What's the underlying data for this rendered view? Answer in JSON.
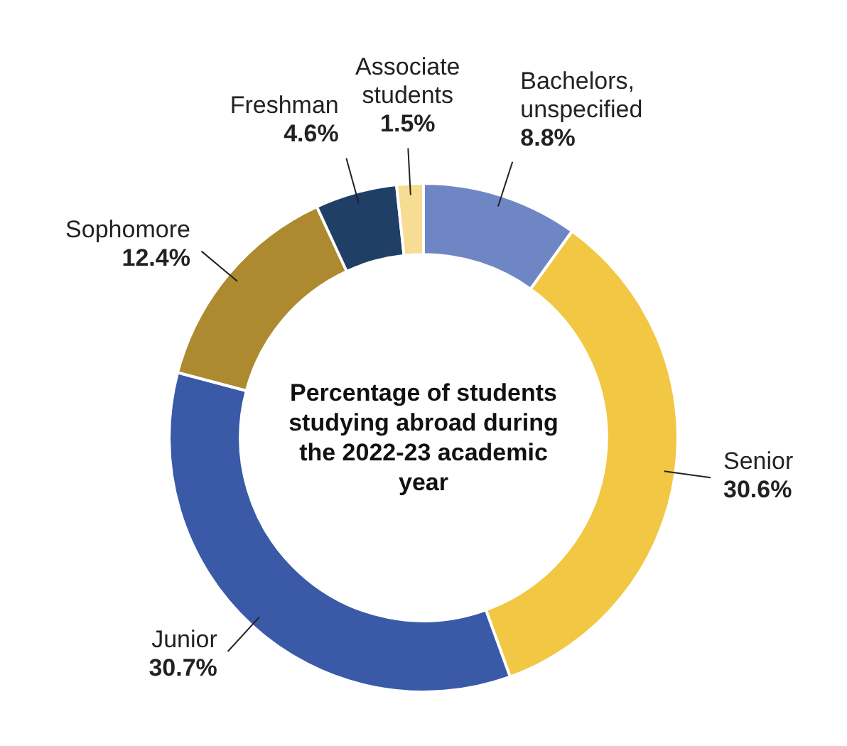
{
  "chart_data": {
    "type": "donut",
    "title": "Percentage of students studying abroad during the 2022-23 academic year",
    "categories": [
      "Bachelors, unspecified",
      "Senior",
      "Junior",
      "Sophomore",
      "Freshman",
      "Associate students"
    ],
    "values": [
      8.8,
      30.6,
      30.7,
      12.4,
      4.6,
      1.5
    ],
    "value_labels": [
      "8.8%",
      "30.6%",
      "30.7%",
      "12.4%",
      "4.6%",
      "1.5%"
    ],
    "colors": [
      "#6f86c4",
      "#f2c744",
      "#3a5aa8",
      "#ad8a30",
      "#1f3f66",
      "#f7dc94"
    ],
    "legend": false
  }
}
